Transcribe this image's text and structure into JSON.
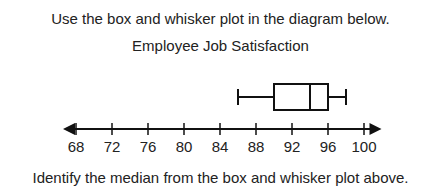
{
  "chart_data": {
    "type": "box",
    "title": "Employee Job Satisfaction",
    "annotations": [
      "Use the box and whisker plot in the diagram below.",
      "Identify the median from the box and whisker plot above."
    ],
    "orientation": "horizontal",
    "boxes": [
      {
        "min": 86,
        "q1": 90,
        "median": 94,
        "q3": 96,
        "max": 98
      }
    ],
    "xlim": [
      67,
      101.5
    ],
    "xticks": [
      68,
      72,
      76,
      80,
      84,
      88,
      92,
      96,
      100
    ]
  }
}
